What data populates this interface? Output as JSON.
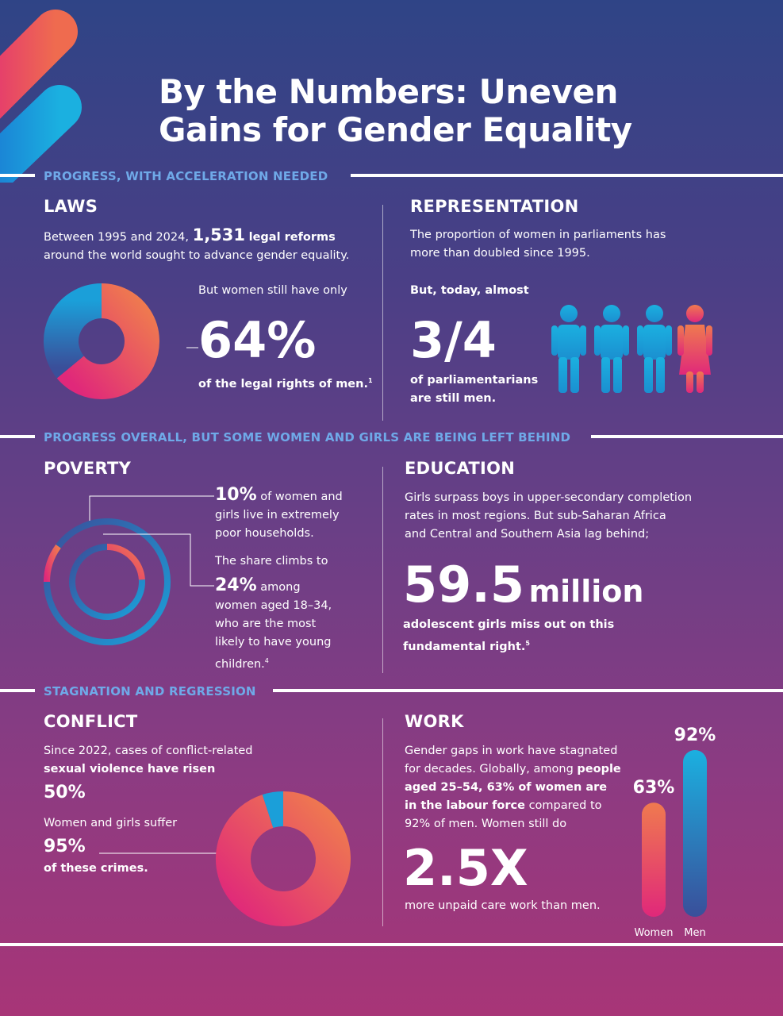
{
  "title": {
    "line1": "By the Numbers: Uneven",
    "line2": "Gains for Gender Equality"
  },
  "colors": {
    "accent_blue": "#6fa9e8",
    "coral": "#ef6b4f",
    "magenta": "#e0287a",
    "cyan": "#1b9fd9",
    "navy": "#2f4486"
  },
  "sections": {
    "progress": "PROGRESS, WITH ACCELERATION NEEDED",
    "overall": "PROGRESS OVERALL, BUT SOME WOMEN AND GIRLS ARE BEING LEFT BEHIND",
    "stagnation": "STAGNATION AND REGRESSION"
  },
  "laws": {
    "heading": "LAWS",
    "text1": "Between 1995 and 2024,",
    "reform_count": "1,531",
    "text2": "legal reforms",
    "text3": "around the world sought to advance gender equality.",
    "intro": "But women still have only",
    "stat": "64%",
    "caption": "of the legal rights of men.",
    "footnote": "1",
    "share": 0.64
  },
  "representation": {
    "heading": "REPRESENTATION",
    "text1": "The proportion of women in parliaments has",
    "text2": "more than doubled since 1995.",
    "intro": "But, today, almost",
    "stat": "3/4",
    "caption1": "of parliamentarians",
    "caption2": "are still men.",
    "icons": [
      "man-icon",
      "man-icon",
      "man-icon",
      "woman-icon"
    ]
  },
  "poverty": {
    "heading": "POVERTY",
    "stat1": "10%",
    "text1a": "of women and",
    "text1b": "girls live in extremely",
    "text1c": "poor households.",
    "text2": "The share climbs to",
    "stat2": "24%",
    "text3a": "among",
    "text3b": "women aged 18–34,",
    "text3c": "who are the most",
    "text3d": "likely to have young",
    "text3e": "children.",
    "footnote": "4",
    "outer_share": 0.1,
    "inner_share": 0.24
  },
  "education": {
    "heading": "EDUCATION",
    "text1": "Girls surpass boys in upper-secondary completion",
    "text2": "rates in most regions. But sub-Saharan Africa",
    "text3": "and Central and Southern Asia lag behind;",
    "stat": "59.5",
    "unit": "million",
    "caption1": "adolescent girls miss out on this",
    "caption2": "fundamental right.",
    "footnote": "5"
  },
  "conflict": {
    "heading": "CONFLICT",
    "text1": "Since 2022, cases of conflict-related",
    "text2": "sexual violence have risen",
    "stat1": "50%",
    "text3": "Women and girls suffer",
    "stat2": "95%",
    "caption": "of these crimes.",
    "share": 0.95
  },
  "work": {
    "heading": "WORK",
    "t1": "Gender gaps in work have stagnated",
    "t2": "for decades.  Globally, among",
    "t2b": "people",
    "t3": "aged 25–54, 63% of women are",
    "t4": "in the labour force",
    "t4b": "compared to",
    "t5": "92% of men. Women still do",
    "stat": "2.5X",
    "caption": "more unpaid care work than men.",
    "bars": [
      {
        "label": "Women",
        "display": "63%",
        "value": 63
      },
      {
        "label": "Men",
        "display": "92%",
        "value": 92
      }
    ]
  }
}
